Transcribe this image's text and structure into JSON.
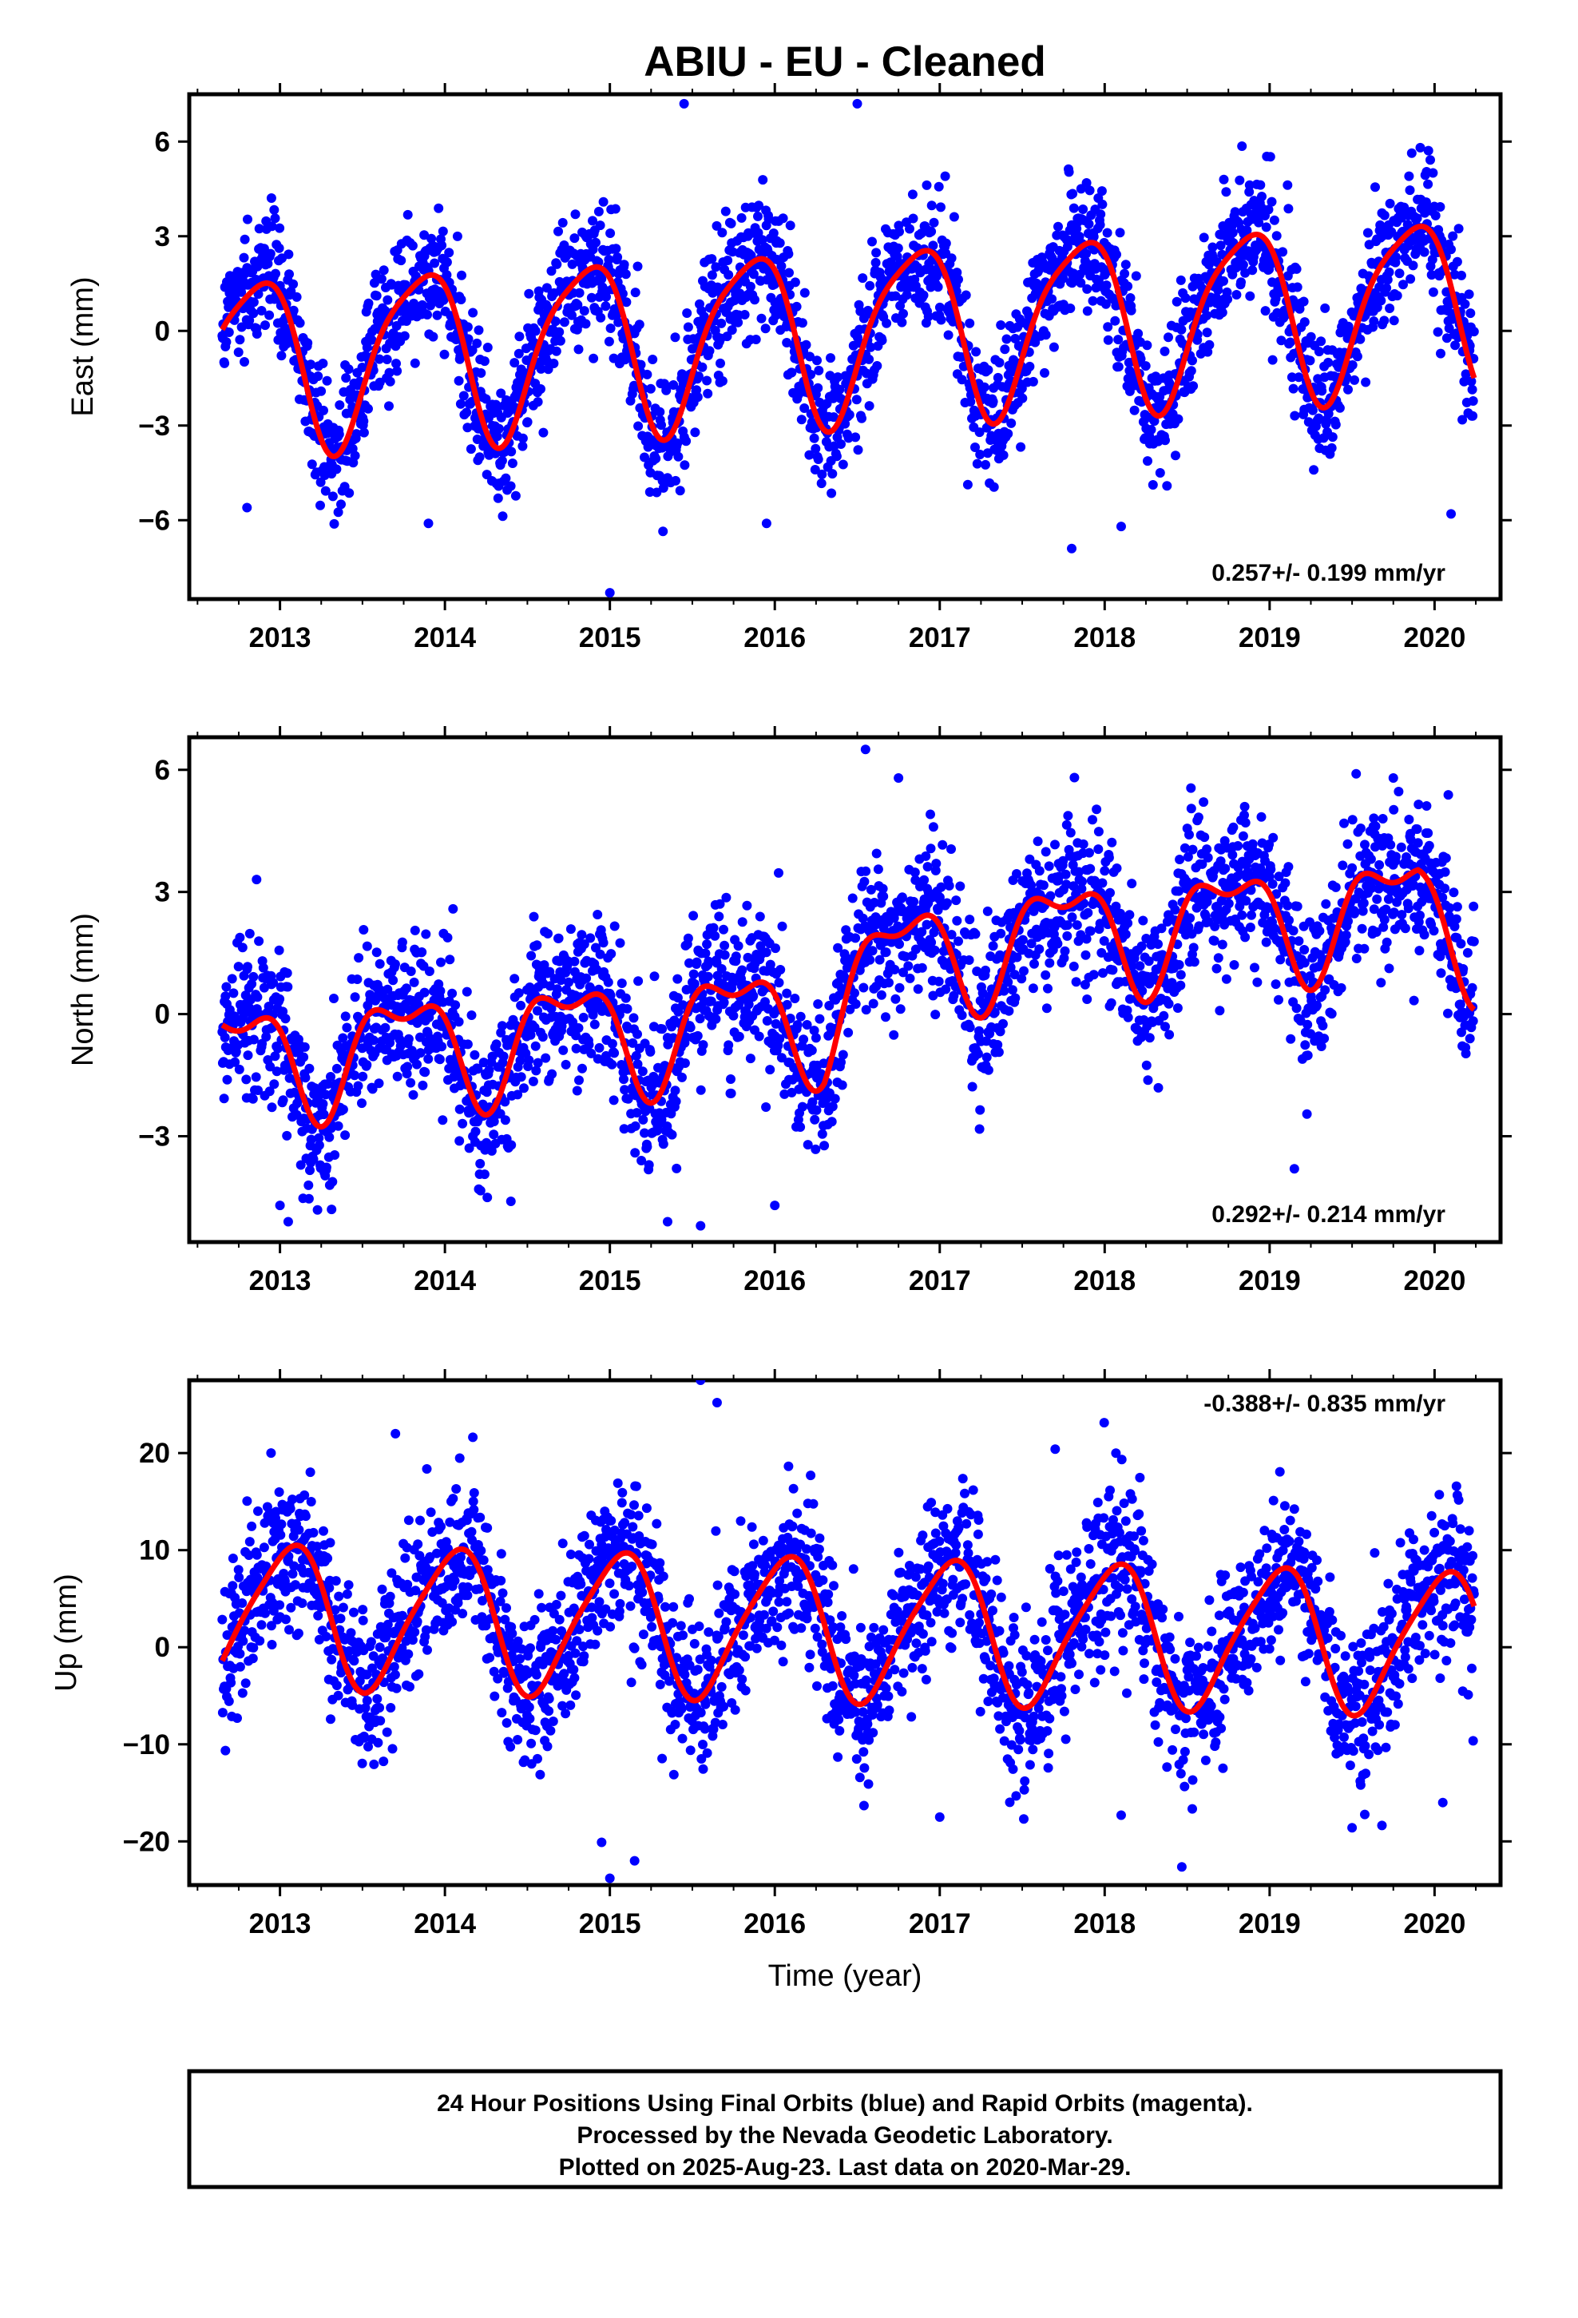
{
  "title": "ABIU  - EU - Cleaned",
  "colors": {
    "final_orbits": "#0000ff",
    "fit": "#ff0000",
    "frame": "#000000"
  },
  "xlabel": "Time (year)",
  "footer": {
    "line1": "24 Hour Positions Using Final Orbits (blue) and Rapid Orbits (magenta).",
    "line2": "Processed by the Nevada Geodetic Laboratory.",
    "line3": "Plotted on 2025-Aug-23. Last data on 2020-Mar-29."
  },
  "chart_data": [
    {
      "type": "scatter",
      "ylabel": "East (mm)",
      "rate": "0.257+/- 0.199 mm/yr",
      "xlim": [
        2012.45,
        2020.4
      ],
      "ylim": [
        -8.5,
        7.5
      ],
      "xticks": [
        2013,
        2014,
        2015,
        2016,
        2017,
        2018,
        2019,
        2020
      ],
      "yticks": [
        -6,
        -3,
        0,
        3,
        6
      ],
      "ytick_labels": [
        "−6",
        "−3",
        "0",
        "3",
        "6"
      ],
      "data_range": [
        2012.65,
        2020.24
      ],
      "series": [
        {
          "name": "Final Orbits",
          "color": "#0000ff",
          "marker": "dot"
        },
        {
          "name": "Fit",
          "color": "#ff0000",
          "marker": "line"
        }
      ],
      "model": {
        "offset": 0.0,
        "trend": 0.257,
        "ref_year": 2016.4,
        "annual": [
          2.7,
          0.35
        ],
        "semiannual": [
          0.55,
          0.05
        ],
        "noise": 1.05
      },
      "outliers": [
        [
          2015.45,
          7.2
        ],
        [
          2016.5,
          7.2
        ],
        [
          2015.0,
          -8.3
        ],
        [
          2017.8,
          -6.9
        ],
        [
          2013.9,
          -6.1
        ],
        [
          2018.1,
          -6.2
        ],
        [
          2015.95,
          -6.1
        ],
        [
          2012.8,
          -5.6
        ],
        [
          2020.1,
          -5.8
        ]
      ]
    },
    {
      "type": "scatter",
      "ylabel": "North (mm)",
      "rate": "0.292+/- 0.214 mm/yr",
      "xlim": [
        2012.45,
        2020.4
      ],
      "ylim": [
        -5.6,
        6.8
      ],
      "xticks": [
        2013,
        2014,
        2015,
        2016,
        2017,
        2018,
        2019,
        2020
      ],
      "yticks": [
        -3,
        0,
        3,
        6
      ],
      "ytick_labels": [
        "−3",
        "0",
        "3",
        "6"
      ],
      "data_range": [
        2012.65,
        2020.24
      ],
      "series": [
        {
          "name": "Final Orbits",
          "color": "#0000ff",
          "marker": "dot"
        },
        {
          "name": "Fit",
          "color": "#ff0000",
          "marker": "line"
        }
      ],
      "model": {
        "offset": 0.0,
        "trend": 0.292,
        "ref_year": 2016.4,
        "annual": [
          1.25,
          0.25
        ],
        "semiannual": [
          0.6,
          0.0
        ],
        "steps": [
          [
            2016.3,
            1.6
          ],
          [
            2019.9,
            -1.2
          ]
        ],
        "noise": 0.95
      },
      "outliers": [
        [
          2016.55,
          6.5
        ],
        [
          2016.75,
          5.8
        ],
        [
          2019.75,
          5.8
        ],
        [
          2013.0,
          -4.7
        ],
        [
          2015.35,
          -5.1
        ],
        [
          2015.55,
          -5.2
        ],
        [
          2013.05,
          -5.1
        ],
        [
          2019.15,
          -3.8
        ],
        [
          2016.0,
          -4.7
        ],
        [
          2014.4,
          -4.6
        ]
      ]
    },
    {
      "type": "scatter",
      "ylabel": "Up (mm)",
      "rate": "-0.388+/- 0.835 mm/yr",
      "xlim": [
        2012.45,
        2020.4
      ],
      "ylim": [
        -24.5,
        27.5
      ],
      "xticks": [
        2013,
        2014,
        2015,
        2016,
        2017,
        2018,
        2019,
        2020
      ],
      "yticks": [
        -20,
        -10,
        0,
        10,
        20
      ],
      "ytick_labels": [
        "−20",
        "−10",
        "0",
        "10",
        "20"
      ],
      "data_range": [
        2012.65,
        2020.24
      ],
      "series": [
        {
          "name": "Final Orbits",
          "color": "#0000ff",
          "marker": "dot"
        },
        {
          "name": "Fit",
          "color": "#ff0000",
          "marker": "line"
        }
      ],
      "model": {
        "offset": 2.0,
        "trend": -0.388,
        "ref_year": 2016.4,
        "annual": [
          7.2,
          0.55
        ],
        "semiannual": [
          1.2,
          0.2
        ],
        "noise": 4.2
      },
      "outliers": [
        [
          2015.55,
          27.5
        ],
        [
          2015.65,
          25.2
        ],
        [
          2015.0,
          -23.8
        ],
        [
          2015.15,
          -22.0
        ],
        [
          2013.7,
          22.0
        ],
        [
          2017.7,
          20.4
        ],
        [
          2014.95,
          -20.1
        ],
        [
          2017.0,
          -17.5
        ],
        [
          2018.1,
          -17.3
        ],
        [
          2020.05,
          -16.0
        ]
      ]
    }
  ]
}
